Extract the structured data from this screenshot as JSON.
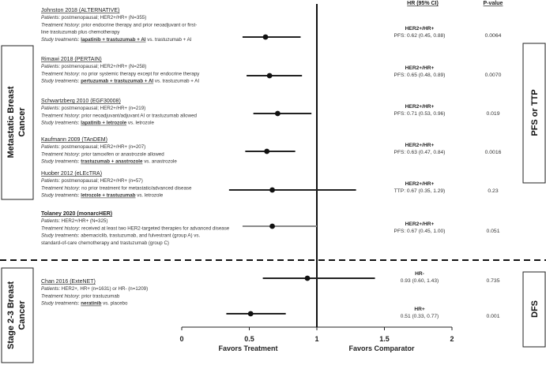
{
  "headers": {
    "hr": "HR (95% CI)",
    "p": "P-value"
  },
  "groups": [
    {
      "label_line1": "Metastatic Breast",
      "label_line2": "Cancer",
      "endpoint": "PFS or TTP"
    },
    {
      "label_line1": "Stage 2-3 Breast",
      "label_line2": "Cancer",
      "endpoint": "DFS"
    }
  ],
  "studies": [
    {
      "title": "Johnston 2018 (ALTERNATIVE)",
      "lines": [
        [
          {
            "t": "Patients",
            "it": true
          },
          {
            "t": ": postmenopausal; HER2+/HR+ (N=355)"
          }
        ],
        [
          {
            "t": "Treatment history",
            "it": true
          },
          {
            "t": ": prior endocrine therapy and prior neoadjuvant or first-"
          }
        ],
        [
          {
            "t": "line trastuzumab plus chemotherapy"
          }
        ],
        [
          {
            "t": "Study treatments",
            "it": true
          },
          {
            "t": ": "
          },
          {
            "t": "lapatinib + trastuzumab + AI",
            "b": true
          },
          {
            "t": " vs. trastuzumab + AI"
          }
        ]
      ]
    },
    {
      "title": "Rimawi 2018 (PERTAIN)",
      "lines": [
        [
          {
            "t": "Patients",
            "it": true
          },
          {
            "t": ": postmenopausal; HER2+/HR+ (N=258)"
          }
        ],
        [
          {
            "t": "Treatment history",
            "it": true
          },
          {
            "t": ": no prior systemic therapy except for endocrine therapy"
          }
        ],
        [
          {
            "t": "Study treatments",
            "it": true
          },
          {
            "t": ": "
          },
          {
            "t": "pertuzumab + trastuzumab + AI",
            "b": true
          },
          {
            "t": " vs. trastuzumab + AI"
          }
        ]
      ]
    },
    {
      "title": "Schwartzberg 2010 (EGF30008)",
      "lines": [
        [
          {
            "t": "Patients",
            "it": true
          },
          {
            "t": ": postmenopausal; HER2+/HR+ (n=219)"
          }
        ],
        [
          {
            "t": "Treatment history",
            "it": true
          },
          {
            "t": ": prior neoadjuvant/adjuvant AI or trastuzumab allowed"
          }
        ],
        [
          {
            "t": "Study treatments",
            "it": true
          },
          {
            "t": ": "
          },
          {
            "t": "lapatinib + letrozole",
            "b": true
          },
          {
            "t": " vs. letrozole"
          }
        ]
      ]
    },
    {
      "title": "Kaufmann 2009 (TAnDEM)",
      "lines": [
        [
          {
            "t": "Patients",
            "it": true
          },
          {
            "t": ": postmenopausal; HER2+/HR+ (n=207)"
          }
        ],
        [
          {
            "t": "Treatment history",
            "it": true
          },
          {
            "t": ": prior tamoxifen or anastrozole allowed"
          }
        ],
        [
          {
            "t": "Study treatments",
            "it": true
          },
          {
            "t": ": "
          },
          {
            "t": "trastuzumab + anastrozole",
            "b": true
          },
          {
            "t": " vs. anastrozole"
          }
        ]
      ]
    },
    {
      "title": "Huober 2012 (eLEcTRA)",
      "lines": [
        [
          {
            "t": "Patients",
            "it": true
          },
          {
            "t": ": postmenopausal; HER2+/HR+ (n=57)"
          }
        ],
        [
          {
            "t": "Treatment history",
            "it": true
          },
          {
            "t": ": no prior treatment for metastatic/advanced disease"
          }
        ],
        [
          {
            "t": "Study treatments",
            "it": true
          },
          {
            "t": ": "
          },
          {
            "t": "letrozole + trastuzumab",
            "b": true
          },
          {
            "t": " vs. letrozole"
          }
        ]
      ]
    },
    {
      "title": "Tolaney 2020 (monarcHER)",
      "bold_title": true,
      "lines": [
        [
          {
            "t": "Patients",
            "it": true
          },
          {
            "t": ": HER2+/HR+ (N=325)"
          }
        ],
        [
          {
            "t": "Treatment history",
            "it": true
          },
          {
            "t": ": received at least two HER2-targeted therapies for advanced disease"
          }
        ],
        [
          {
            "t": "Study treatments",
            "it": true
          },
          {
            "t": ": abemaciclib, trastuzumab, and fulvestrant (group A) vs."
          }
        ],
        [
          {
            "t": "standard-of-care chemotherapy and trastuzumab (group C)"
          }
        ]
      ]
    },
    {
      "title": "Chan 2016 (ExteNET)",
      "lines": [
        [
          {
            "t": "Patients",
            "it": true
          },
          {
            "t": ": HER2+, HR+ (n=1631) or HR- (n=1209)"
          }
        ],
        [
          {
            "t": "Treatment history",
            "it": true
          },
          {
            "t": ": prior trastuzumab"
          }
        ],
        [
          {
            "t": "Study treatments",
            "it": true
          },
          {
            "t": ": "
          },
          {
            "t": "neratinib",
            "b": true
          },
          {
            "t": " vs. placebo"
          }
        ]
      ]
    }
  ],
  "chart_data": {
    "type": "forest",
    "x_ticks": [
      0,
      0.5,
      1,
      1.5,
      2
    ],
    "x_tick_labels": [
      "0",
      "0.5",
      "1",
      "1.5",
      "2"
    ],
    "xlim": [
      0,
      2
    ],
    "reference_line": 1,
    "xlabel_left": "Favors Treatment",
    "xlabel_right": "Favors Comparator",
    "rows": [
      {
        "study": "Johnston 2018 (ALTERNATIVE)",
        "subgroup": "HER2+/HR+",
        "estimate_label": "PFS: 0.62 (0.45, 0.88)",
        "hr": 0.62,
        "lo": 0.45,
        "hi": 0.88,
        "p": "0.0064"
      },
      {
        "study": "Rimawi 2018 (PERTAIN)",
        "subgroup": "HER2+/HR+",
        "estimate_label": "PFS: 0.65 (0.48, 0.89)",
        "hr": 0.65,
        "lo": 0.48,
        "hi": 0.89,
        "p": "0.0070"
      },
      {
        "study": "Schwartzberg 2010 (EGF30008)",
        "subgroup": "HER2+/HR+",
        "estimate_label": "PFS: 0.71 (0.53, 0.96)",
        "hr": 0.71,
        "lo": 0.53,
        "hi": 0.96,
        "p": "0.019"
      },
      {
        "study": "Kaufmann 2009 (TAnDEM)",
        "subgroup": "HER2+/HR+",
        "estimate_label": "PFS: 0.63 (0.47, 0.84)",
        "hr": 0.63,
        "lo": 0.47,
        "hi": 0.84,
        "p": "0.0016"
      },
      {
        "study": "Huober 2012 (eLEcTRA)",
        "subgroup": "HER2+/HR+",
        "estimate_label": "TTP: 0.67 (0.35, 1.29)",
        "hr": 0.67,
        "lo": 0.35,
        "hi": 1.29,
        "p": "0.23"
      },
      {
        "study": "Tolaney 2020 (monarcHER)",
        "subgroup": "HER2+/HR+",
        "estimate_label": "PFS: 0.67 (0.45, 1.00)",
        "hr": 0.67,
        "lo": 0.45,
        "hi": 1.0,
        "p": "0.051",
        "grey": true
      },
      {
        "study": "Chan 2016 (ExteNET)",
        "subgroup": "HR-",
        "estimate_label": "0.93 (0.60, 1.43)",
        "hr": 0.93,
        "lo": 0.6,
        "hi": 1.43,
        "p": "0.735"
      },
      {
        "study": "Chan 2016 (ExteNET)",
        "subgroup": "HR+",
        "estimate_label": "0.51 (0.33, 0.77)",
        "hr": 0.51,
        "lo": 0.33,
        "hi": 0.77,
        "p": "0.001"
      }
    ]
  }
}
